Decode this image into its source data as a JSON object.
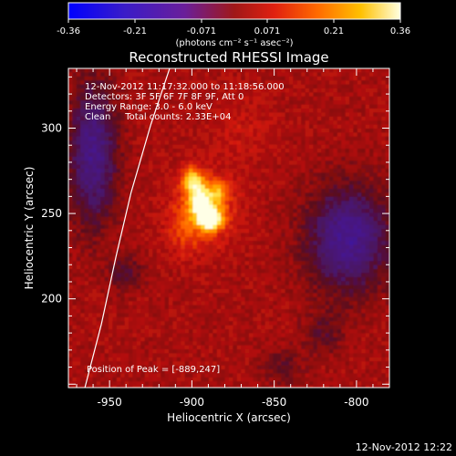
{
  "colorbar": {
    "tick_labels": [
      "-0.36",
      "-0.21",
      "-0.071",
      "0.071",
      "0.21",
      "0.36"
    ],
    "unit_label": "(photons cm⁻² s⁻¹ asec⁻²)"
  },
  "chart_data": {
    "type": "heatmap",
    "title": "Reconstructed RHESSI Image",
    "xlabel": "Heliocentric X (arcsec)",
    "ylabel": "Heliocentric Y (arcsec)",
    "xlim": [
      -975,
      -780
    ],
    "ylim": [
      148,
      335
    ],
    "x_ticks": [
      -950,
      -900,
      -850,
      -800
    ],
    "y_ticks": [
      200,
      250,
      300
    ],
    "color_range": [
      -0.36,
      0.36
    ],
    "annotations": [
      "12-Nov-2012 11:17:32.000 to 11:18:56.000",
      "Detectors: 3F 5F 6F 7F 8F 9F, Att 0",
      "Energy Range: 3.0 - 6.0 keV",
      "Clean     Total counts: 2.33E+04"
    ],
    "peak_label": "Position of Peak = [-889,247]",
    "peak": [
      -889,
      247
    ],
    "limb_curve": [
      [
        -965,
        148
      ],
      [
        -955,
        185
      ],
      [
        -946,
        225
      ],
      [
        -937,
        262
      ],
      [
        -925,
        302
      ],
      [
        -910,
        345
      ]
    ]
  },
  "footer": {
    "timestamp": "12-Nov-2012 12:22"
  }
}
